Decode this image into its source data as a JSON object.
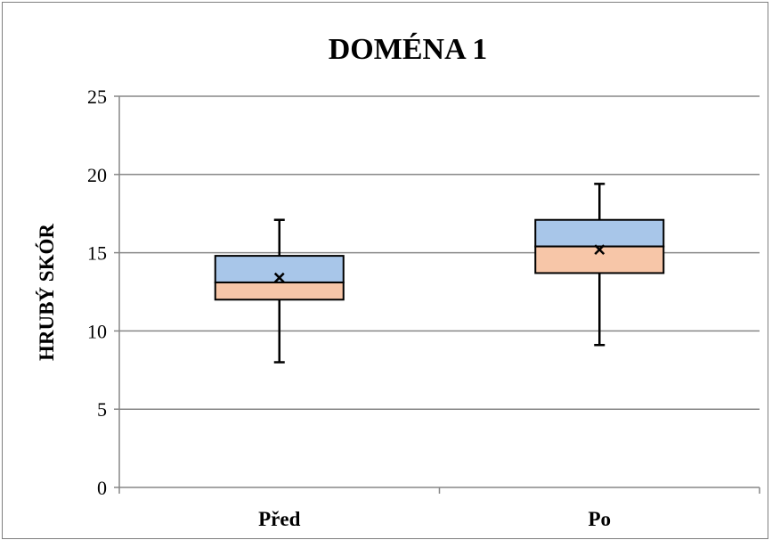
{
  "chart_data": {
    "type": "boxplot",
    "title": "DOMÉNA 1",
    "xlabel": "",
    "ylabel": "HRUBÝ SKÓR",
    "ylim": [
      0,
      25
    ],
    "yticks": [
      0,
      5,
      10,
      15,
      20,
      25
    ],
    "grid": true,
    "legend": "none",
    "categories": [
      "Před",
      "Po"
    ],
    "boxes": [
      {
        "category": "Před",
        "min": 8.0,
        "q1": 12.0,
        "median": 13.1,
        "q3": 14.8,
        "max": 17.1,
        "mean": 13.4
      },
      {
        "category": "Po",
        "min": 9.1,
        "q1": 13.7,
        "median": 15.4,
        "q3": 17.1,
        "max": 19.4,
        "mean": 15.2
      }
    ],
    "colors": {
      "upper_box": "#a8c6e9",
      "lower_box": "#f7c6a8",
      "outline": "#000000",
      "gridline": "#878787"
    }
  }
}
